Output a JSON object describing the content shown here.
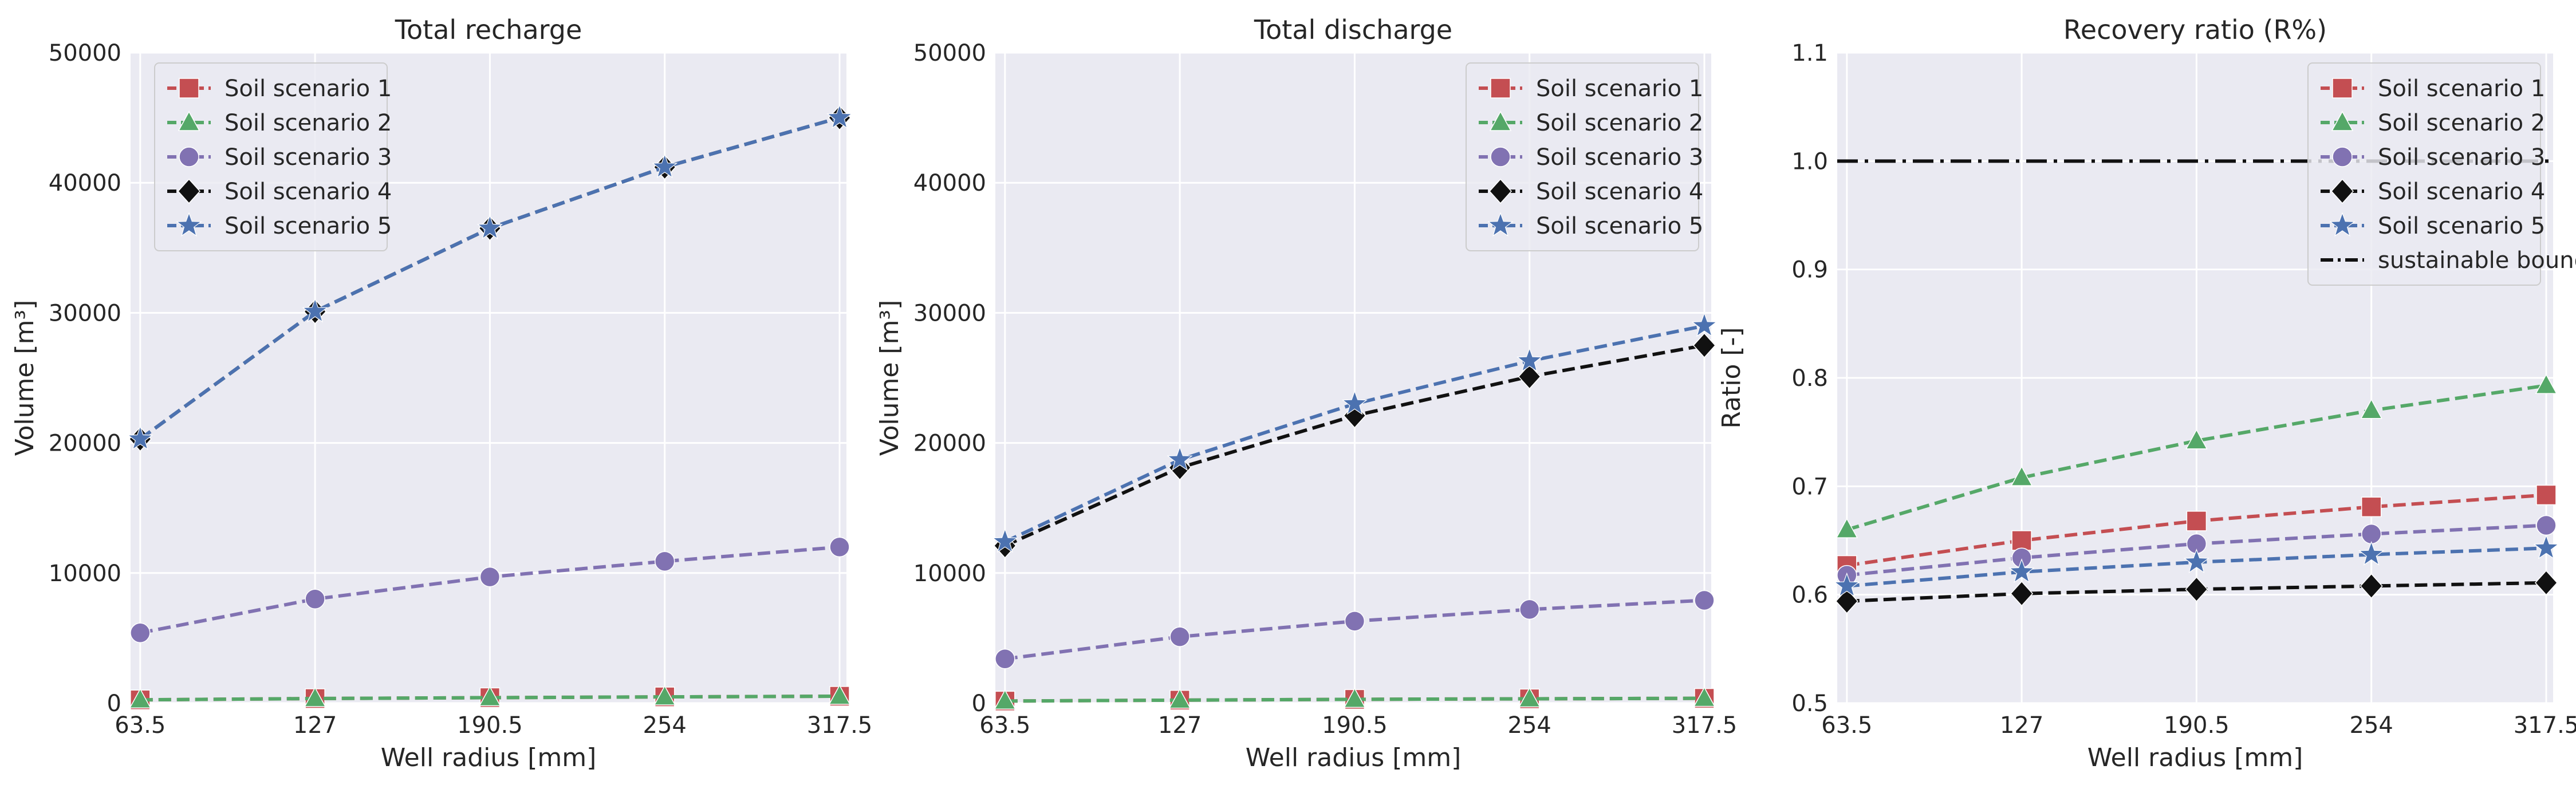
{
  "colors": {
    "panel_bg": "#EAEAF2",
    "grid": "#FFFFFF",
    "scenario1": "#C44E52",
    "scenario2": "#55A868",
    "scenario3": "#8172B2",
    "scenario4": "#111111",
    "scenario5": "#4C72B0",
    "boundary": "#111111"
  },
  "chart_data": [
    {
      "type": "line",
      "title": "Total recharge",
      "xlabel": "Well radius [mm]",
      "ylabel": "Volume [m³]",
      "x": [
        63.5,
        127,
        190.5,
        254,
        317.5
      ],
      "x_tick_labels": [
        "63.5",
        "127",
        "190.5",
        "254",
        "317.5"
      ],
      "xlim": [
        60,
        320
      ],
      "ylim": [
        0,
        50000
      ],
      "y_ticks": [
        0,
        10000,
        20000,
        30000,
        40000,
        50000
      ],
      "y_tick_labels": [
        "0",
        "10000",
        "20000",
        "30000",
        "40000",
        "50000"
      ],
      "grid": true,
      "legend_position": "top-left",
      "series": [
        {
          "name": "Soil scenario 1",
          "marker": "square",
          "values": [
            250,
            350,
            420,
            480,
            530
          ]
        },
        {
          "name": "Soil scenario 2",
          "marker": "triangle",
          "values": [
            250,
            350,
            420,
            480,
            530
          ]
        },
        {
          "name": "Soil scenario 3",
          "marker": "circle",
          "values": [
            5400,
            8000,
            9700,
            10900,
            12000
          ]
        },
        {
          "name": "Soil scenario 4",
          "marker": "diamond",
          "values": [
            20300,
            30100,
            36500,
            41200,
            45000
          ]
        },
        {
          "name": "Soil scenario 5",
          "marker": "star",
          "values": [
            20300,
            30100,
            36500,
            41200,
            45000
          ]
        }
      ]
    },
    {
      "type": "line",
      "title": "Total discharge",
      "xlabel": "Well radius [mm]",
      "ylabel": "Volume [m³]",
      "x": [
        63.5,
        127,
        190.5,
        254,
        317.5
      ],
      "x_tick_labels": [
        "63.5",
        "127",
        "190.5",
        "254",
        "317.5"
      ],
      "xlim": [
        60,
        320
      ],
      "ylim": [
        0,
        50000
      ],
      "y_ticks": [
        0,
        10000,
        20000,
        30000,
        40000,
        50000
      ],
      "y_tick_labels": [
        "0",
        "10000",
        "20000",
        "30000",
        "40000",
        "50000"
      ],
      "grid": true,
      "legend_position": "top-right",
      "series": [
        {
          "name": "Soil scenario 1",
          "marker": "square",
          "values": [
            160,
            230,
            290,
            330,
            370
          ]
        },
        {
          "name": "Soil scenario 2",
          "marker": "triangle",
          "values": [
            160,
            230,
            290,
            330,
            370
          ]
        },
        {
          "name": "Soil scenario 3",
          "marker": "circle",
          "values": [
            3400,
            5100,
            6300,
            7200,
            7900
          ]
        },
        {
          "name": "Soil scenario 4",
          "marker": "diamond",
          "values": [
            12100,
            18100,
            22100,
            25100,
            27500
          ]
        },
        {
          "name": "Soil scenario 5",
          "marker": "star",
          "values": [
            12400,
            18700,
            23000,
            26300,
            29000
          ]
        }
      ]
    },
    {
      "type": "line",
      "title": "Recovery ratio (R%)",
      "xlabel": "Well radius [mm]",
      "ylabel": "Ratio [-]",
      "x": [
        63.5,
        127,
        190.5,
        254,
        317.5
      ],
      "x_tick_labels": [
        "63.5",
        "127",
        "190.5",
        "254",
        "317.5"
      ],
      "xlim": [
        60,
        320
      ],
      "ylim": [
        0.5,
        1.1
      ],
      "y_ticks": [
        0.5,
        0.6,
        0.7,
        0.8,
        0.9,
        1.0,
        1.1
      ],
      "y_tick_labels": [
        "0.5",
        "0.6",
        "0.7",
        "0.8",
        "0.9",
        "1.0",
        "1.1"
      ],
      "grid": true,
      "legend_position": "top-right",
      "series": [
        {
          "name": "Soil scenario 1",
          "marker": "square",
          "values": [
            0.627,
            0.65,
            0.668,
            0.681,
            0.692
          ]
        },
        {
          "name": "Soil scenario 2",
          "marker": "triangle",
          "values": [
            0.66,
            0.708,
            0.742,
            0.77,
            0.793
          ]
        },
        {
          "name": "Soil scenario 3",
          "marker": "circle",
          "values": [
            0.618,
            0.634,
            0.647,
            0.656,
            0.664
          ]
        },
        {
          "name": "Soil scenario 4",
          "marker": "diamond",
          "values": [
            0.594,
            0.601,
            0.605,
            0.608,
            0.611
          ]
        },
        {
          "name": "Soil scenario 5",
          "marker": "star",
          "values": [
            0.608,
            0.621,
            0.63,
            0.637,
            0.643
          ]
        }
      ],
      "reference_lines": [
        {
          "name": "sustainable boundary",
          "y": 1.0,
          "style": "dash-dot"
        }
      ]
    }
  ]
}
